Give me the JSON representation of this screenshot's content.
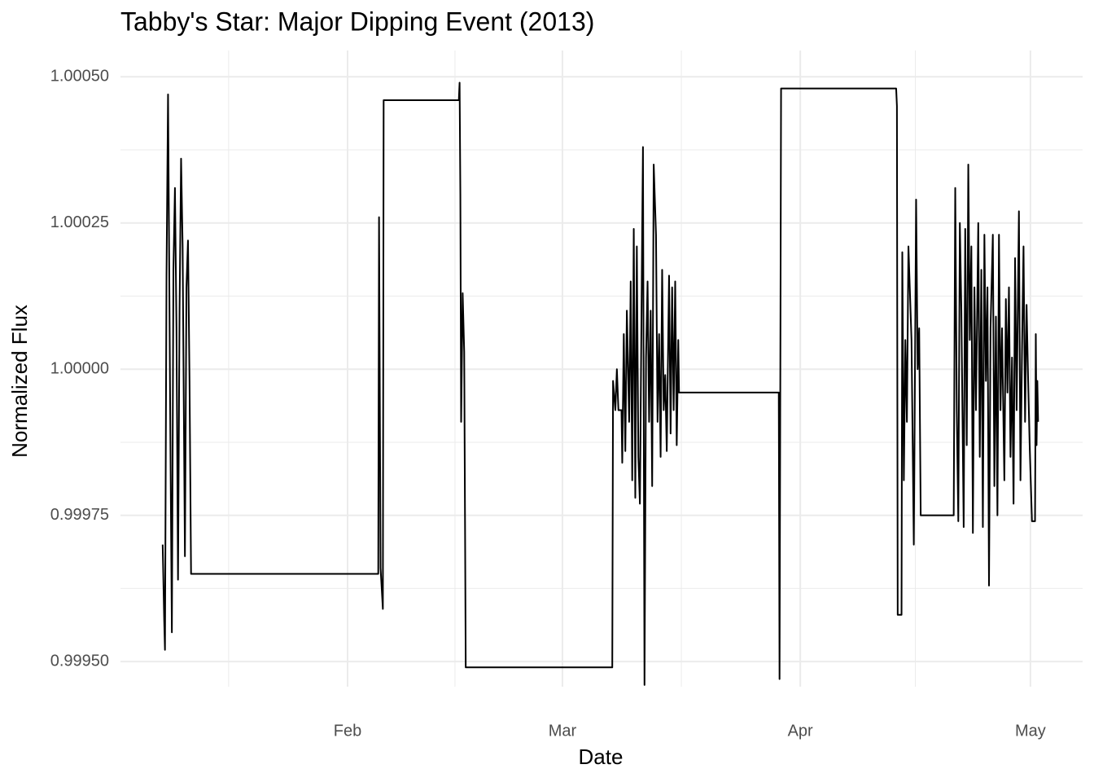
{
  "chart_data": {
    "type": "line",
    "title": "Tabby's Star: Major Dipping Event (2013)",
    "x_label": "Date",
    "y_label": "Normalized Flux",
    "color": "#000000",
    "grid": true,
    "xlim": [
      1.4,
      126.8
    ],
    "ylim": [
      0.999457,
      1.000545
    ],
    "xticks": [
      {
        "value": 31,
        "label": "Feb"
      },
      {
        "value": 59,
        "label": "Mar"
      },
      {
        "value": 90,
        "label": "Apr"
      },
      {
        "value": 120,
        "label": "May"
      }
    ],
    "yticks": [
      {
        "value": 0.9995,
        "label": "0.99950"
      },
      0.99975,
      {
        "value": 1.0,
        "label": "1.00000"
      },
      1.00025,
      {
        "value": 1.0005,
        "label": "1.00050"
      }
    ],
    "x_minor_ticks": [
      15.5,
      45,
      74.5,
      105
    ],
    "y_minor_ticks": [
      0.999625,
      0.999875,
      1.000125,
      1.000375
    ],
    "x": [
      6.9,
      7.1,
      7.2,
      7.4,
      7.6,
      7.9,
      8.1,
      8.3,
      8.5,
      8.7,
      8.9,
      9.1,
      9.3,
      9.5,
      9.8,
      10.0,
      10.2,
      10.4,
      10.6,
      35.0,
      35.1,
      35.3,
      35.6,
      35.7,
      45.5,
      45.6,
      45.7,
      45.8,
      46.0,
      46.2,
      46.4,
      65.5,
      65.6,
      65.9,
      66.1,
      66.3,
      66.7,
      66.8,
      67.0,
      67.2,
      67.4,
      67.7,
      67.9,
      68.1,
      68.3,
      68.5,
      68.7,
      68.9,
      69.1,
      69.4,
      69.5,
      69.7,
      69.9,
      70.1,
      70.3,
      70.5,
      70.7,
      70.9,
      71.2,
      71.4,
      71.6,
      71.8,
      72.0,
      72.2,
      72.4,
      72.6,
      72.9,
      73.1,
      73.3,
      73.5,
      73.7,
      73.9,
      74.1,
      74.2,
      87.2,
      87.3,
      87.5,
      102.5,
      102.6,
      102.7,
      103.2,
      103.3,
      103.5,
      103.7,
      103.9,
      104.1,
      104.5,
      104.8,
      105.1,
      105.3,
      105.5,
      105.7,
      110.0,
      110.2,
      110.4,
      110.6,
      110.8,
      111.0,
      111.3,
      111.5,
      111.7,
      111.9,
      112.1,
      112.3,
      112.5,
      112.7,
      112.9,
      113.2,
      113.4,
      113.6,
      113.8,
      114.0,
      114.2,
      114.4,
      114.6,
      114.8,
      115.1,
      115.3,
      115.5,
      115.7,
      115.9,
      116.1,
      116.3,
      116.6,
      116.8,
      117.0,
      117.2,
      117.4,
      117.6,
      117.8,
      118.0,
      118.2,
      118.5,
      118.7,
      118.9,
      119.1,
      119.3,
      119.5,
      119.7,
      119.9,
      120.2,
      120.6,
      120.7,
      120.8,
      120.9,
      121.0
    ],
    "values": [
      0.9997,
      0.99957,
      0.99952,
      1.00016,
      1.00047,
      0.99989,
      0.99955,
      1.00017,
      1.00031,
      1.00007,
      0.99964,
      1.0001,
      1.00036,
      1.00021,
      0.99968,
      1.00014,
      1.00022,
      0.99998,
      0.99965,
      0.99965,
      1.00026,
      0.99966,
      0.99959,
      1.00046,
      1.00046,
      1.00049,
      1.0003,
      0.99991,
      1.00013,
      1.00003,
      0.99949,
      0.99949,
      0.99998,
      0.99993,
      1.0,
      0.99993,
      0.99993,
      0.99984,
      1.00006,
      0.99986,
      1.0001,
      0.99991,
      1.00015,
      0.99981,
      1.00024,
      0.99978,
      1.00021,
      0.99985,
      0.99977,
      1.00024,
      1.00038,
      0.99946,
      1.00002,
      1.00015,
      0.99991,
      1.0001,
      0.9998,
      1.00035,
      1.00023,
      0.99991,
      1.00006,
      0.99985,
      1.00017,
      0.99993,
      0.99999,
      0.99986,
      1.00016,
      0.99989,
      1.00014,
      0.99993,
      1.00015,
      0.99987,
      1.00005,
      0.99996,
      0.99996,
      0.99947,
      1.00048,
      1.00048,
      1.00045,
      0.99958,
      0.99958,
      1.0002,
      0.99981,
      1.00005,
      0.99991,
      1.00021,
      1.00005,
      0.9997,
      1.00029,
      1.0,
      1.00007,
      0.99975,
      0.99975,
      1.00031,
      0.99993,
      0.99974,
      1.00025,
      1.0001,
      0.99973,
      1.00024,
      0.99987,
      1.00035,
      1.00005,
      1.00021,
      0.99972,
      1.00014,
      0.99993,
      1.00025,
      0.99985,
      1.00017,
      0.99973,
      1.00023,
      0.99998,
      1.00014,
      0.99963,
      1.00007,
      1.00023,
      0.9998,
      1.00009,
      0.99975,
      1.00023,
      0.99993,
      1.00007,
      0.99981,
      1.00012,
      0.99996,
      1.00014,
      0.99985,
      1.00002,
      0.99977,
      1.00019,
      0.99993,
      1.00027,
      0.99981,
      1.00003,
      1.00021,
      0.99991,
      1.00011,
      0.99998,
      0.99987,
      0.99974,
      0.99974,
      1.00006,
      0.99987,
      0.99998,
      0.99991
    ]
  }
}
